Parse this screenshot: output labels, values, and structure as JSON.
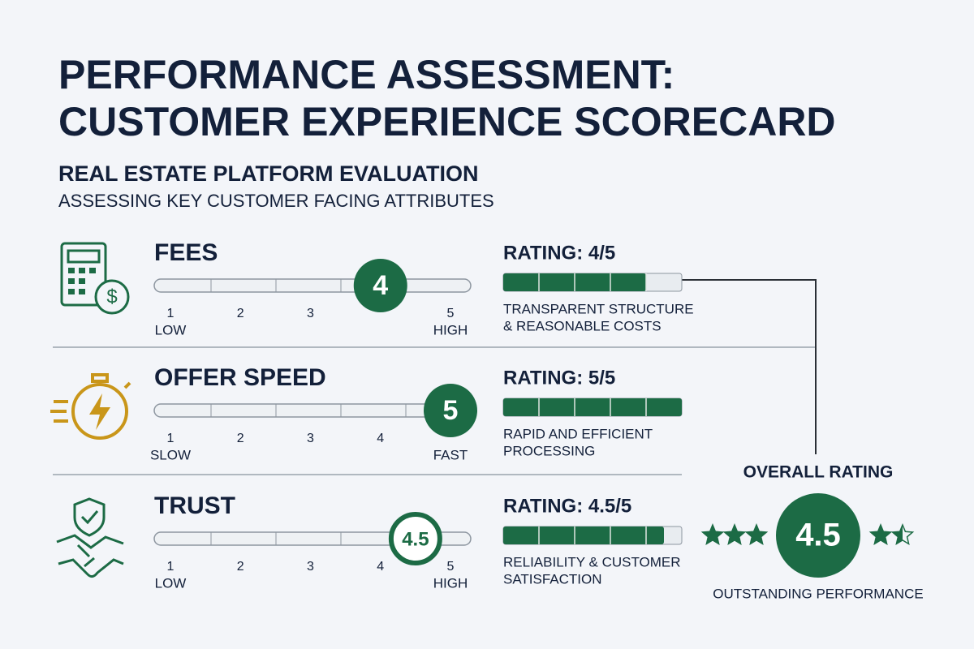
{
  "header": {
    "title_lines": [
      "PERFORMANCE ASSESSMENT:",
      "CUSTOMER EXPERIENCE SCORECARD"
    ],
    "subtitle": "REAL ESTATE PLATFORM EVALUATION",
    "tagline": "ASSESSING KEY CUSTOMER FACING ATTRIBUTES"
  },
  "rows": [
    {
      "title": "FEES",
      "score": 4,
      "marker_style": "filled",
      "rating_text": "RATING: 4/5",
      "description": [
        "TRANSPARENT STRUCTURE",
        "& REASONABLE COSTS"
      ],
      "scale": {
        "min": 1,
        "max": 5,
        "ticks": [
          {
            "value": 1,
            "label": "1"
          },
          {
            "value": 2,
            "label": "2"
          },
          {
            "value": 3,
            "label": "3"
          },
          {
            "value": 5,
            "label": "5"
          }
        ],
        "low_label": "LOW",
        "high_label": "HIGH"
      }
    },
    {
      "title": "OFFER SPEED",
      "score": 5,
      "marker_style": "filled",
      "rating_text": "RATING: 5/5",
      "description": [
        "RAPID AND EFFICIENT",
        "PROCESSING"
      ],
      "scale": {
        "min": 1,
        "max": 5,
        "ticks": [
          {
            "value": 1,
            "label": "1"
          },
          {
            "value": 2,
            "label": "2"
          },
          {
            "value": 3,
            "label": "3"
          },
          {
            "value": 4,
            "label": "4"
          }
        ],
        "low_label": "SLOW",
        "high_label": "FAST"
      }
    },
    {
      "title": "TRUST",
      "score": 4.5,
      "marker_style": "outline",
      "rating_text": "RATING: 4.5/5",
      "description": [
        "RELIABILITY & CUSTOMER",
        "SATISFACTION"
      ],
      "scale": {
        "min": 1,
        "max": 5,
        "ticks": [
          {
            "value": 1,
            "label": "1"
          },
          {
            "value": 2,
            "label": "2"
          },
          {
            "value": 3,
            "label": "3"
          },
          {
            "value": 4,
            "label": "4"
          },
          {
            "value": 5,
            "label": "5"
          }
        ],
        "low_label": "LOW",
        "high_label": "HIGH"
      }
    }
  ],
  "overall": {
    "label": "OVERALL RATING",
    "score": 4.5,
    "max": 5,
    "caption": "OUTSTANDING PERFORMANCE"
  }
}
